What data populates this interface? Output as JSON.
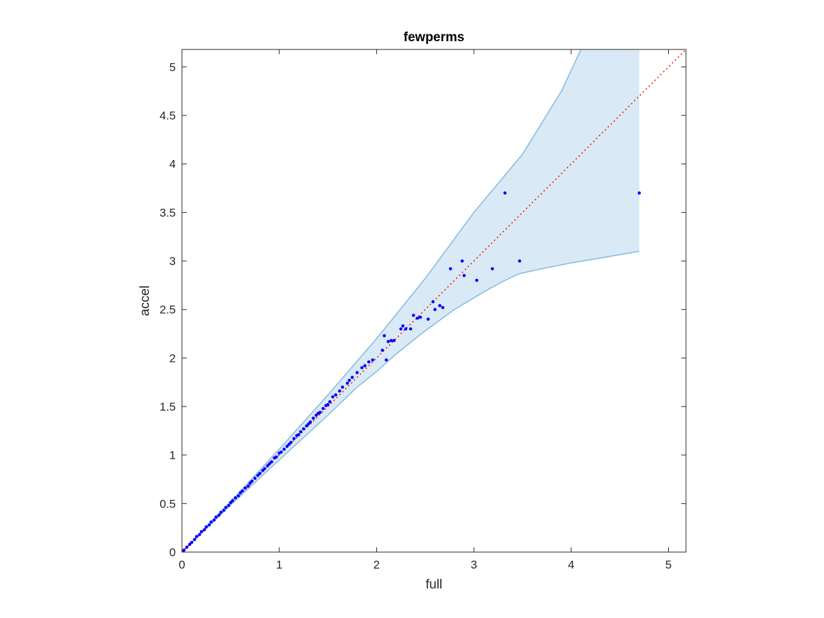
{
  "chart_data": {
    "type": "scatter",
    "title": "fewperms",
    "xlabel": "full",
    "ylabel": "accel",
    "xlim": [
      0,
      5.18
    ],
    "ylim": [
      0,
      5.18
    ],
    "xticks": [
      "0",
      "1",
      "2",
      "3",
      "4",
      "5"
    ],
    "yticks": [
      "0",
      "0.5",
      "1",
      "1.5",
      "2",
      "2.5",
      "3",
      "3.5",
      "4",
      "4.5",
      "5"
    ],
    "xtick_values": [
      0,
      1,
      2,
      3,
      4,
      5
    ],
    "ytick_values": [
      0,
      0.5,
      1,
      1.5,
      2,
      2.5,
      3,
      3.5,
      4,
      4.5,
      5
    ],
    "grid": false,
    "colors": {
      "points": "#0000ff",
      "band_fill": "#d9e9f5",
      "band_edge": "#86bde0",
      "identity_line": "#ff0000",
      "axes": "#262626"
    },
    "identity_line": {
      "x": [
        0,
        5.18
      ],
      "y": [
        0,
        5.18
      ]
    },
    "band_upper": {
      "x": [
        0,
        0.5,
        1.0,
        1.5,
        2.0,
        2.5,
        3.0,
        3.5,
        3.9,
        4.1
      ],
      "y": [
        0,
        0.52,
        1.06,
        1.62,
        2.2,
        2.82,
        3.5,
        4.1,
        4.75,
        5.18
      ]
    },
    "band_top_right": {
      "x": [
        4.1,
        4.7
      ],
      "y": [
        5.18,
        5.18
      ]
    },
    "band_lower": {
      "x": [
        0,
        0.5,
        1.0,
        1.5,
        1.8,
        2.0,
        2.2,
        2.5,
        2.8,
        3.1,
        3.3,
        3.47,
        3.7,
        4.0,
        4.3,
        4.7
      ],
      "y": [
        0,
        0.485,
        0.95,
        1.41,
        1.7,
        1.86,
        2.04,
        2.28,
        2.5,
        2.68,
        2.79,
        2.87,
        2.92,
        2.98,
        3.03,
        3.1
      ]
    },
    "points": {
      "x": [
        0.02,
        0.05,
        0.08,
        0.1,
        0.13,
        0.15,
        0.18,
        0.2,
        0.23,
        0.25,
        0.28,
        0.3,
        0.33,
        0.35,
        0.38,
        0.4,
        0.43,
        0.45,
        0.48,
        0.5,
        0.52,
        0.55,
        0.58,
        0.6,
        0.62,
        0.65,
        0.68,
        0.7,
        0.72,
        0.75,
        0.78,
        0.8,
        0.83,
        0.85,
        0.88,
        0.9,
        0.92,
        0.95,
        0.97,
        1.0,
        1.02,
        1.05,
        1.08,
        1.1,
        1.12,
        1.15,
        1.18,
        1.2,
        1.22,
        1.25,
        1.28,
        1.3,
        1.32,
        1.35,
        1.38,
        1.4,
        1.42,
        1.45,
        1.48,
        1.5,
        1.52,
        1.55,
        1.58,
        1.62,
        1.65,
        1.7,
        1.72,
        1.75,
        1.8,
        1.85,
        1.88,
        1.92,
        1.96,
        2.06,
        2.08,
        2.1,
        2.12,
        2.15,
        2.18,
        2.25,
        2.27,
        2.3,
        2.35,
        2.38,
        2.42,
        2.45,
        2.53,
        2.58,
        2.6,
        2.65,
        2.68,
        2.76,
        2.88,
        2.9,
        3.03,
        3.19,
        3.32,
        3.47,
        4.7
      ],
      "y": [
        0.02,
        0.05,
        0.08,
        0.1,
        0.13,
        0.16,
        0.18,
        0.21,
        0.23,
        0.26,
        0.28,
        0.31,
        0.33,
        0.36,
        0.38,
        0.41,
        0.43,
        0.46,
        0.48,
        0.51,
        0.53,
        0.56,
        0.58,
        0.61,
        0.63,
        0.66,
        0.68,
        0.71,
        0.73,
        0.76,
        0.79,
        0.81,
        0.84,
        0.86,
        0.89,
        0.91,
        0.93,
        0.97,
        0.98,
        1.02,
        1.03,
        1.06,
        1.09,
        1.11,
        1.13,
        1.17,
        1.2,
        1.21,
        1.24,
        1.27,
        1.3,
        1.32,
        1.34,
        1.38,
        1.41,
        1.43,
        1.44,
        1.48,
        1.51,
        1.52,
        1.55,
        1.6,
        1.62,
        1.66,
        1.7,
        1.74,
        1.77,
        1.8,
        1.85,
        1.9,
        1.92,
        1.96,
        1.98,
        2.08,
        2.23,
        1.98,
        2.17,
        2.18,
        2.18,
        2.3,
        2.33,
        2.3,
        2.3,
        2.44,
        2.41,
        2.42,
        2.4,
        2.58,
        2.5,
        2.54,
        2.52,
        2.92,
        3.0,
        2.85,
        2.8,
        2.92,
        3.7,
        3.0,
        3.7
      ]
    }
  }
}
